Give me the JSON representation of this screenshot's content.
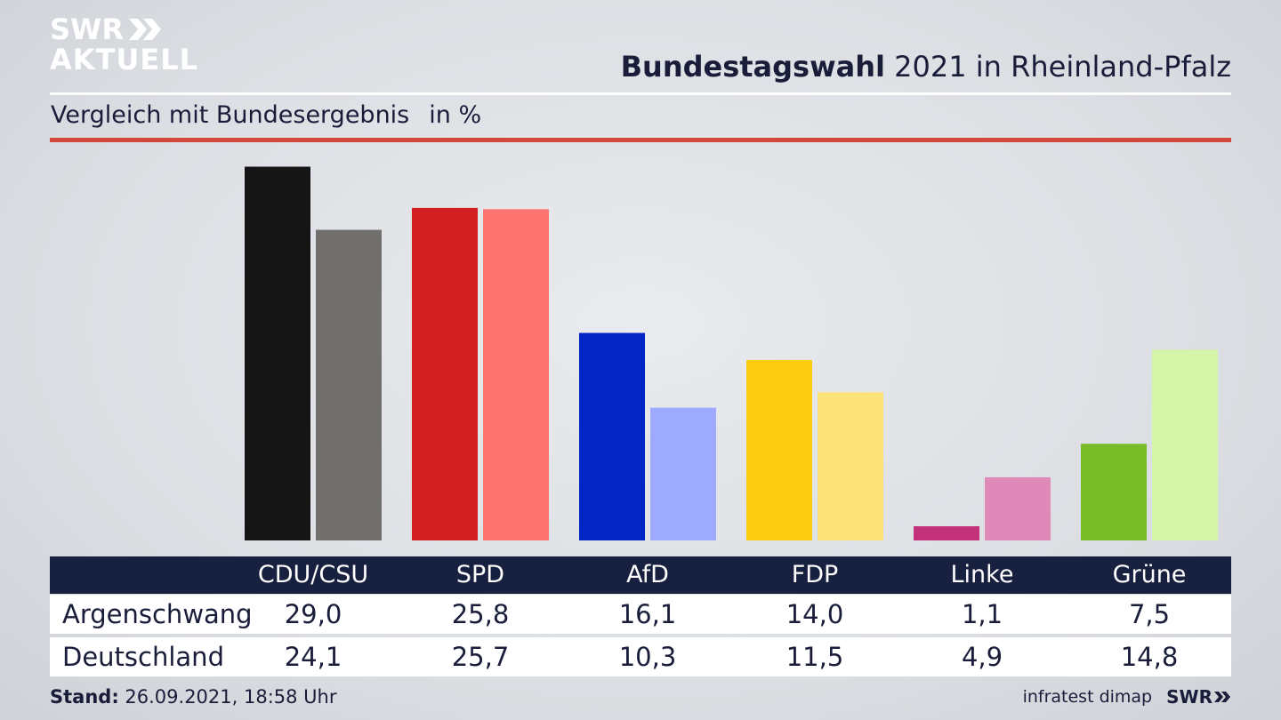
{
  "header": {
    "logo_line1": "SWR",
    "logo_line2": "AKTUELL",
    "title_bold": "Bundestagswahl",
    "title_rest": " 2021 in Rheinland-Pfalz",
    "subtitle": "Vergleich mit Bundesergebnis",
    "unit": "in %"
  },
  "footer": {
    "stand_label": "Stand:",
    "stand_value": " 26.09.2021, 18:58 Uhr",
    "source": "infratest dimap",
    "brand": "SWR"
  },
  "chart_data": {
    "type": "bar",
    "categories": [
      "CDU/CSU",
      "SPD",
      "AfD",
      "FDP",
      "Linke",
      "Grüne"
    ],
    "series": [
      {
        "name": "Argenschwang",
        "values": [
          29.0,
          25.8,
          16.1,
          14.0,
          1.1,
          7.5
        ],
        "labels": [
          "29,0",
          "25,8",
          "16,1",
          "14,0",
          "1,1",
          "7,5"
        ],
        "colors": [
          "#151515",
          "#d41f22",
          "#0425c6",
          "#fdcb0f",
          "#c2317a",
          "#79bc26"
        ]
      },
      {
        "name": "Deutschland",
        "values": [
          24.1,
          25.7,
          10.3,
          11.5,
          4.9,
          14.8
        ],
        "labels": [
          "24,1",
          "25,7",
          "10,3",
          "11,5",
          "4,9",
          "14,8"
        ],
        "colors": [
          "#706f6d",
          "#fe7470",
          "#9daafe",
          "#fde277",
          "#df89b9",
          "#d5f5a8"
        ]
      }
    ],
    "grid": false,
    "legend": "table-below"
  }
}
